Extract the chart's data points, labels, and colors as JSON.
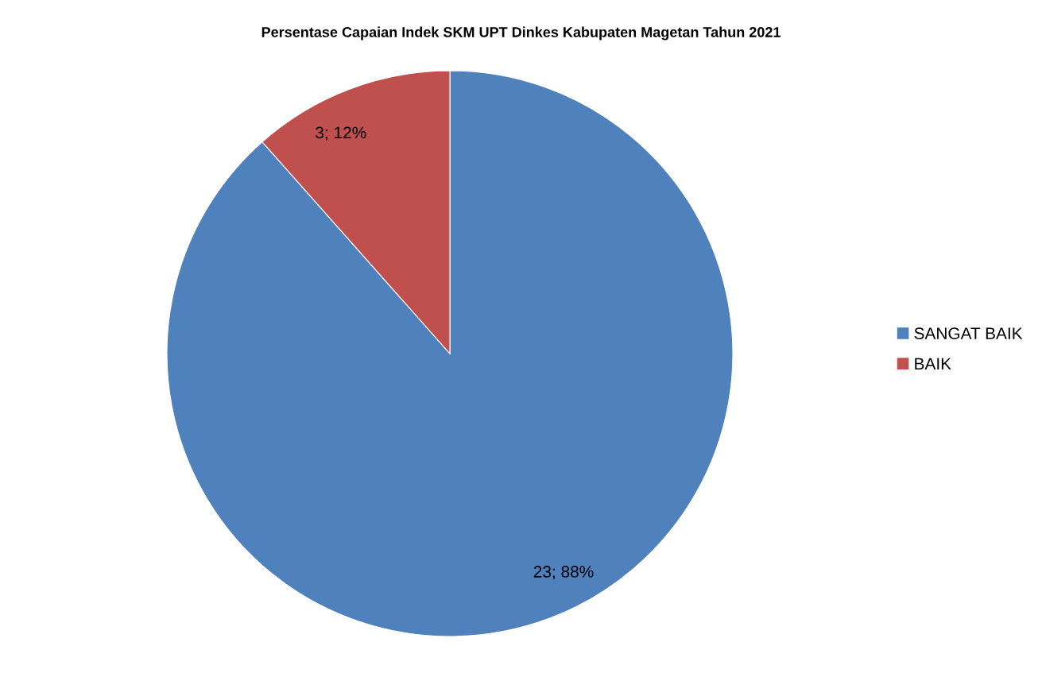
{
  "chart_data": {
    "type": "pie",
    "title": "Persentase Capaian Indek SKM UPT Dinkes Kabupaten Magetan Tahun 2021",
    "categories": [
      "SANGAT BAIK",
      "BAIK"
    ],
    "values": [
      23,
      3
    ],
    "colors": [
      "#4f81bd",
      "#c0504d"
    ],
    "value_labels": [
      "23; 88%",
      "3; 12%"
    ],
    "legend": "right"
  }
}
